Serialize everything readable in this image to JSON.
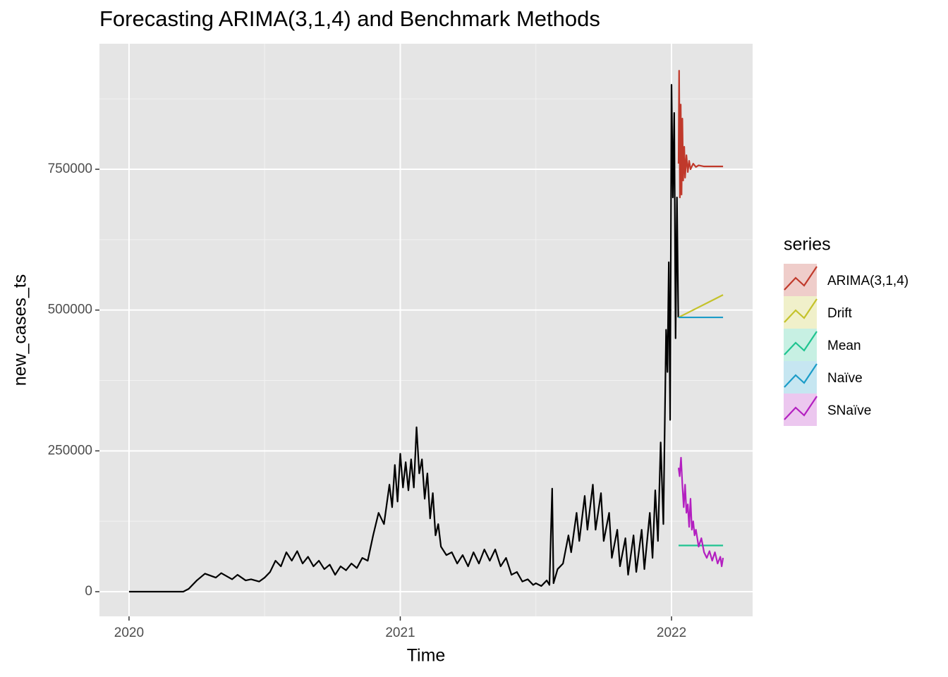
{
  "chart_data": {
    "type": "line",
    "title": "Forecasting ARIMA(3,1,4) and Benchmark Methods",
    "x_label": "Time",
    "y_label": "new_cases_ts",
    "legend_title": "series",
    "legend_position": "right",
    "grid": true,
    "xlim": [
      2019.891,
      2022.299
    ],
    "ylim": [
      -43800,
      972900
    ],
    "xticks": [
      2020,
      2021,
      2022
    ],
    "yticks": [
      0,
      250000,
      500000,
      750000
    ],
    "x_minor_grid": [
      2020.5,
      2021.5
    ],
    "y_minor_grid": [
      125000,
      375000,
      625000,
      875000
    ],
    "series": [
      {
        "color": "#000000",
        "x": [
          2020.0,
          2020.2,
          2020.22,
          2020.25,
          2020.28,
          2020.32,
          2020.34,
          2020.38,
          2020.4,
          2020.43,
          2020.45,
          2020.48,
          2020.5,
          2020.52,
          2020.54,
          2020.56,
          2020.58,
          2020.6,
          2020.62,
          2020.64,
          2020.66,
          2020.68,
          2020.7,
          2020.72,
          2020.74,
          2020.76,
          2020.78,
          2020.8,
          2020.82,
          2020.84,
          2020.86,
          2020.88,
          2020.9,
          2020.92,
          2020.94,
          2020.96,
          2020.97,
          2020.98,
          2020.99,
          2021.0,
          2021.01,
          2021.02,
          2021.03,
          2021.04,
          2021.05,
          2021.06,
          2021.07,
          2021.08,
          2021.09,
          2021.1,
          2021.11,
          2021.12,
          2021.13,
          2021.14,
          2021.15,
          2021.17,
          2021.19,
          2021.21,
          2021.23,
          2021.25,
          2021.27,
          2021.29,
          2021.31,
          2021.33,
          2021.35,
          2021.37,
          2021.39,
          2021.41,
          2021.43,
          2021.45,
          2021.47,
          2021.49,
          2021.5,
          2021.52,
          2021.54,
          2021.55,
          2021.56,
          2021.565,
          2021.58,
          2021.6,
          2021.62,
          2021.63,
          2021.65,
          2021.66,
          2021.68,
          2021.69,
          2021.71,
          2021.72,
          2021.74,
          2021.75,
          2021.77,
          2021.78,
          2021.8,
          2021.81,
          2021.83,
          2021.84,
          2021.86,
          2021.87,
          2021.89,
          2021.9,
          2021.92,
          2021.93,
          2021.94,
          2021.95,
          2021.96,
          2021.97,
          2021.98,
          2021.985,
          2021.99,
          2021.995,
          2022.0,
          2022.005,
          2022.01,
          2022.015,
          2022.02,
          2022.025
        ],
        "values": [
          0,
          0,
          5000,
          20000,
          32000,
          25000,
          33000,
          22000,
          30000,
          20000,
          22000,
          18000,
          25000,
          35000,
          55000,
          45000,
          70000,
          55000,
          72000,
          50000,
          62000,
          45000,
          55000,
          40000,
          48000,
          30000,
          45000,
          38000,
          50000,
          42000,
          60000,
          55000,
          100000,
          140000,
          120000,
          190000,
          150000,
          225000,
          160000,
          245000,
          185000,
          230000,
          180000,
          235000,
          185000,
          292000,
          210000,
          235000,
          165000,
          210000,
          130000,
          175000,
          100000,
          120000,
          80000,
          65000,
          70000,
          50000,
          65000,
          45000,
          70000,
          50000,
          75000,
          55000,
          75000,
          45000,
          60000,
          30000,
          35000,
          18000,
          22000,
          12000,
          15000,
          10000,
          20000,
          12000,
          183000,
          15000,
          40000,
          50000,
          100000,
          70000,
          140000,
          90000,
          170000,
          110000,
          190000,
          110000,
          175000,
          90000,
          140000,
          60000,
          110000,
          45000,
          95000,
          30000,
          100000,
          35000,
          110000,
          40000,
          140000,
          60000,
          180000,
          90000,
          265000,
          120000,
          465000,
          390000,
          585000,
          305000,
          900000,
          700000,
          850000,
          450000,
          700000,
          487000
        ]
      },
      {
        "name": "ARIMA(3,1,4)",
        "color": "#c0392b",
        "x": [
          2022.026,
          2022.028,
          2022.031,
          2022.034,
          2022.037,
          2022.04,
          2022.043,
          2022.047,
          2022.05,
          2022.055,
          2022.06,
          2022.065,
          2022.07,
          2022.08,
          2022.09,
          2022.1,
          2022.12,
          2022.19
        ],
        "values": [
          760000,
          925000,
          700000,
          865000,
          705000,
          840000,
          730000,
          790000,
          735000,
          775000,
          745000,
          765000,
          750000,
          760000,
          754000,
          757000,
          755000,
          755000
        ]
      },
      {
        "name": "Drift",
        "color": "#c4c22a",
        "x": [
          2022.026,
          2022.19
        ],
        "values": [
          487000,
          527000
        ]
      },
      {
        "name": "Mean",
        "color": "#1fc490",
        "x": [
          2022.026,
          2022.19
        ],
        "values": [
          82000,
          82000
        ]
      },
      {
        "name": "Naïve",
        "color": "#1b9cc8",
        "x": [
          2022.026,
          2022.19
        ],
        "values": [
          487000,
          487000
        ]
      },
      {
        "name": "SNaïve",
        "color": "#b31fc0",
        "x": [
          2022.026,
          2022.03,
          2022.035,
          2022.04,
          2022.045,
          2022.05,
          2022.055,
          2022.06,
          2022.065,
          2022.07,
          2022.075,
          2022.08,
          2022.085,
          2022.09,
          2022.1,
          2022.11,
          2022.12,
          2022.13,
          2022.14,
          2022.15,
          2022.16,
          2022.17,
          2022.18,
          2022.185,
          2022.19
        ],
        "values": [
          220000,
          205000,
          238000,
          190000,
          150000,
          190000,
          140000,
          155000,
          115000,
          165000,
          110000,
          125000,
          100000,
          110000,
          80000,
          95000,
          70000,
          60000,
          72000,
          55000,
          70000,
          50000,
          62000,
          45000,
          60000
        ]
      }
    ]
  }
}
